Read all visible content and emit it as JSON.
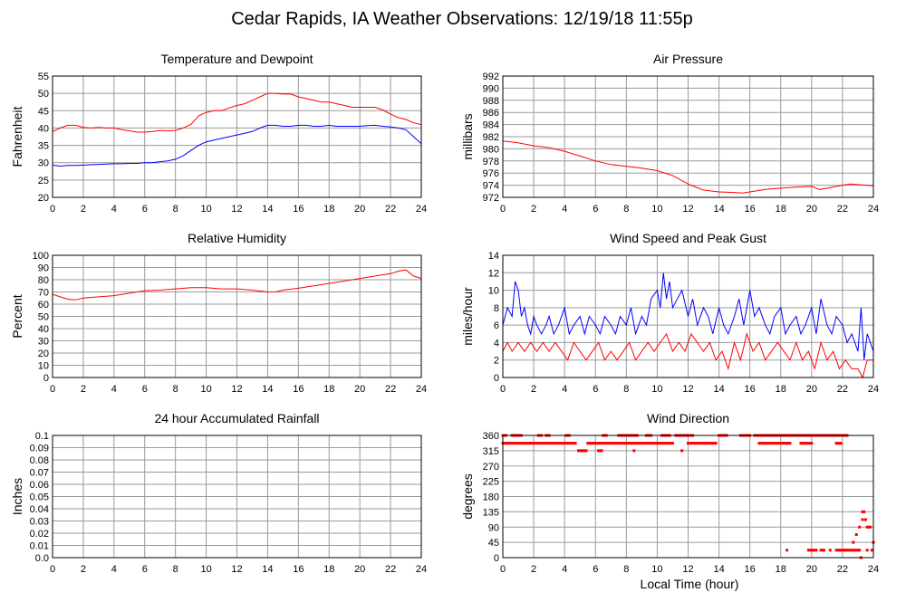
{
  "page": {
    "title": "Cedar Rapids, IA Weather Observations: 12/19/18 11:55p",
    "xlabel_bottom": "Local Time (hour)"
  },
  "colors": {
    "red": "#ff0000",
    "blue": "#0000ff",
    "grid": "#9a9a9a"
  },
  "chart_data": [
    {
      "id": "temp",
      "type": "line",
      "title": "Temperature and Dewpoint",
      "ylabel": "Fahrenheit",
      "xlim": [
        0,
        24
      ],
      "ylim": [
        20,
        55
      ],
      "yticks": [
        20,
        25,
        30,
        35,
        40,
        45,
        50,
        55
      ],
      "xticks": [
        0,
        2,
        4,
        6,
        8,
        10,
        12,
        14,
        16,
        18,
        20,
        22,
        24
      ],
      "grid": true,
      "series": [
        {
          "color": "#ff0000",
          "x": [
            0,
            0.5,
            1,
            1.5,
            2,
            2.5,
            3,
            3.5,
            4,
            4.5,
            5,
            5.5,
            6,
            6.5,
            7,
            7.5,
            8,
            8.5,
            9,
            9.5,
            10,
            10.5,
            11,
            11.5,
            12,
            12.5,
            13,
            13.5,
            14,
            14.5,
            15,
            15.5,
            16,
            16.5,
            17,
            17.5,
            18,
            18.5,
            19,
            19.5,
            20,
            20.5,
            21,
            21.5,
            22,
            22.5,
            23,
            23.5,
            24
          ],
          "y": [
            39,
            40,
            40.8,
            40.8,
            40.2,
            40,
            40.2,
            40,
            40,
            39.5,
            39.2,
            38.8,
            38.8,
            39,
            39.3,
            39.2,
            39.3,
            40,
            41,
            43.5,
            44.5,
            45,
            45,
            45.8,
            46.5,
            47,
            48,
            49,
            50,
            50,
            49.8,
            49.8,
            49,
            48.5,
            48,
            47.5,
            47.5,
            47,
            46.5,
            46,
            46,
            46,
            46,
            45.2,
            44,
            43,
            42.5,
            41.5,
            41
          ]
        },
        {
          "color": "#0000ff",
          "x": [
            0,
            0.5,
            1,
            1.5,
            2,
            2.5,
            3,
            3.5,
            4,
            4.5,
            5,
            5.5,
            6,
            6.5,
            7,
            7.5,
            8,
            8.5,
            9,
            9.5,
            10,
            10.5,
            11,
            11.5,
            12,
            12.5,
            13,
            13.5,
            14,
            14.5,
            15,
            15.5,
            16,
            16.5,
            17,
            17.5,
            18,
            18.5,
            19,
            19.5,
            20,
            20.5,
            21,
            21.5,
            22,
            22.5,
            23,
            23.5,
            24
          ],
          "y": [
            29.3,
            29,
            29.2,
            29.2,
            29.3,
            29.4,
            29.5,
            29.6,
            29.7,
            29.7,
            29.8,
            29.8,
            30,
            30,
            30.3,
            30.5,
            31,
            32,
            33.5,
            35,
            36,
            36.5,
            37,
            37.5,
            38,
            38.5,
            39,
            40,
            40.8,
            40.8,
            40.5,
            40.5,
            40.8,
            40.8,
            40.5,
            40.5,
            40.8,
            40.5,
            40.5,
            40.5,
            40.5,
            40.7,
            40.8,
            40.5,
            40.3,
            40,
            39.5,
            37.5,
            35.5
          ]
        }
      ]
    },
    {
      "id": "pressure",
      "type": "line",
      "title": "Air Pressure",
      "ylabel": "millibars",
      "xlim": [
        0,
        24
      ],
      "ylim": [
        972,
        992
      ],
      "yticks": [
        972,
        974,
        976,
        978,
        980,
        982,
        984,
        986,
        988,
        990,
        992
      ],
      "xticks": [
        0,
        2,
        4,
        6,
        8,
        10,
        12,
        14,
        16,
        18,
        20,
        22,
        24
      ],
      "grid": true,
      "series": [
        {
          "color": "#ff0000",
          "x": [
            0,
            1,
            2,
            3,
            4,
            5,
            6,
            7,
            8,
            9,
            10,
            11,
            12,
            13,
            14,
            15,
            15.5,
            16,
            17,
            18,
            19,
            20,
            20.5,
            21,
            22,
            22.5,
            23,
            24
          ],
          "y": [
            981.3,
            981,
            980.5,
            980.2,
            979.6,
            978.8,
            978,
            977.4,
            977.1,
            976.8,
            976.4,
            975.6,
            974.2,
            973.2,
            972.9,
            972.8,
            972.7,
            972.9,
            973.3,
            973.5,
            973.7,
            973.8,
            973.3,
            973.5,
            974,
            974.2,
            974.1,
            973.9
          ]
        }
      ]
    },
    {
      "id": "humidity",
      "type": "line",
      "title": "Relative Humidity",
      "ylabel": "Percent",
      "xlim": [
        0,
        24
      ],
      "ylim": [
        0,
        100
      ],
      "yticks": [
        0,
        10,
        20,
        30,
        40,
        50,
        60,
        70,
        80,
        90,
        100
      ],
      "xticks": [
        0,
        2,
        4,
        6,
        8,
        10,
        12,
        14,
        16,
        18,
        20,
        22,
        24
      ],
      "grid": true,
      "series": [
        {
          "color": "#ff0000",
          "x": [
            0,
            0.5,
            1,
            1.5,
            2,
            3,
            4,
            5,
            6,
            7,
            8,
            9,
            10,
            11,
            12,
            13,
            14,
            14.5,
            15,
            16,
            17,
            18,
            19,
            20,
            21,
            22,
            22.5,
            23,
            23.5,
            24
          ],
          "y": [
            68,
            66,
            64,
            63.5,
            65,
            66,
            67,
            69,
            71,
            71.5,
            72.5,
            73.5,
            73.5,
            72.5,
            72.5,
            71.5,
            70,
            70,
            71.5,
            73,
            75,
            77,
            79,
            81,
            83,
            85,
            87,
            88,
            83,
            81
          ]
        }
      ]
    },
    {
      "id": "wind",
      "type": "line",
      "title": "Wind Speed and Peak Gust",
      "ylabel": "miles/hour",
      "xlim": [
        0,
        24
      ],
      "ylim": [
        0,
        14
      ],
      "yticks": [
        0,
        2,
        4,
        6,
        8,
        10,
        12,
        14
      ],
      "xticks": [
        0,
        2,
        4,
        6,
        8,
        10,
        12,
        14,
        16,
        18,
        20,
        22,
        24
      ],
      "grid": true,
      "series": [
        {
          "color": "#0000ff",
          "x": [
            0,
            0.3,
            0.6,
            0.8,
            1,
            1.2,
            1.4,
            1.6,
            1.8,
            2,
            2.2,
            2.5,
            2.8,
            3,
            3.3,
            3.6,
            4,
            4.3,
            4.6,
            5,
            5.3,
            5.6,
            6,
            6.3,
            6.6,
            7,
            7.3,
            7.6,
            8,
            8.3,
            8.6,
            9,
            9.3,
            9.6,
            10,
            10.2,
            10.4,
            10.6,
            10.8,
            11,
            11.3,
            11.6,
            12,
            12.3,
            12.6,
            13,
            13.3,
            13.6,
            14,
            14.3,
            14.6,
            15,
            15.3,
            15.6,
            16,
            16.3,
            16.6,
            17,
            17.3,
            17.6,
            18,
            18.3,
            18.6,
            19,
            19.3,
            19.6,
            20,
            20.3,
            20.6,
            21,
            21.3,
            21.6,
            22,
            22.3,
            22.6,
            23,
            23.2,
            23.4,
            23.6,
            23.8,
            24
          ],
          "y": [
            6,
            8,
            7,
            11,
            10,
            7,
            8,
            6,
            5,
            7,
            6,
            5,
            6,
            7,
            5,
            6,
            8,
            5,
            6,
            7,
            5,
            7,
            6,
            5,
            7,
            6,
            5,
            7,
            6,
            8,
            5,
            7,
            6,
            9,
            10,
            8,
            12,
            9,
            11,
            8,
            9,
            10,
            7,
            9,
            6,
            8,
            7,
            5,
            8,
            6,
            5,
            7,
            9,
            6,
            10,
            7,
            8,
            6,
            5,
            7,
            8,
            5,
            6,
            7,
            5,
            6,
            8,
            5,
            9,
            6,
            5,
            7,
            6,
            4,
            5,
            3,
            8,
            2,
            5,
            4,
            3
          ]
        },
        {
          "color": "#ff0000",
          "x": [
            0,
            0.3,
            0.6,
            1,
            1.4,
            1.8,
            2.2,
            2.6,
            3,
            3.4,
            3.8,
            4.2,
            4.6,
            5,
            5.4,
            5.8,
            6.2,
            6.6,
            7,
            7.4,
            7.8,
            8.2,
            8.6,
            9,
            9.4,
            9.8,
            10.2,
            10.6,
            11,
            11.4,
            11.8,
            12.2,
            12.6,
            13,
            13.4,
            13.8,
            14.2,
            14.6,
            15,
            15.4,
            15.8,
            16.2,
            16.6,
            17,
            17.4,
            17.8,
            18.2,
            18.6,
            19,
            19.4,
            19.8,
            20.2,
            20.6,
            21,
            21.4,
            21.8,
            22.2,
            22.6,
            23,
            23.3,
            23.6,
            24
          ],
          "y": [
            3,
            4,
            3,
            4,
            3,
            4,
            3,
            4,
            3,
            4,
            3,
            2,
            4,
            3,
            2,
            3,
            4,
            2,
            3,
            2,
            3,
            4,
            2,
            3,
            4,
            3,
            4,
            5,
            3,
            4,
            3,
            5,
            4,
            3,
            4,
            2,
            3,
            1,
            4,
            2,
            5,
            3,
            4,
            2,
            3,
            4,
            3,
            2,
            4,
            2,
            3,
            1,
            4,
            2,
            3,
            1,
            2,
            1,
            1,
            0,
            2,
            2
          ]
        }
      ]
    },
    {
      "id": "rain",
      "type": "line",
      "title": "24 hour Accumulated Rainfall",
      "ylabel": "Inches",
      "xlim": [
        0,
        24
      ],
      "ylim": [
        0,
        0.1
      ],
      "yticks": [
        0.0,
        0.01,
        0.02,
        0.03,
        0.04,
        0.05,
        0.06,
        0.07,
        0.08,
        0.09,
        0.1
      ],
      "ytick_labels": [
        "0.0",
        "0.01",
        "0.02",
        "0.03",
        "0.04",
        "0.05",
        "0.06",
        "0.07",
        "0.08",
        "0.09",
        "0.1"
      ],
      "xticks": [
        0,
        2,
        4,
        6,
        8,
        10,
        12,
        14,
        16,
        18,
        20,
        22,
        24
      ],
      "grid": true,
      "series": [
        {
          "color": "#ff0000",
          "x": [
            0,
            24
          ],
          "y": [
            0,
            0
          ]
        }
      ]
    },
    {
      "id": "direction",
      "type": "scatter",
      "title": "Wind Direction",
      "ylabel": "degrees",
      "xlim": [
        0,
        24
      ],
      "ylim": [
        0,
        360
      ],
      "yticks": [
        0,
        45,
        90,
        135,
        180,
        225,
        270,
        315,
        360
      ],
      "xticks": [
        0,
        2,
        4,
        6,
        8,
        10,
        12,
        14,
        16,
        18,
        20,
        22,
        24
      ],
      "grid": true,
      "series": [
        {
          "color": "#ff0000",
          "segments": [
            {
              "from": 0.0,
              "to": 4.7,
              "y": 337
            },
            {
              "from": 5.5,
              "to": 11.0,
              "y": 337
            },
            {
              "from": 12.0,
              "to": 13.8,
              "y": 337
            },
            {
              "from": 0.0,
              "to": 0.2,
              "y": 360
            },
            {
              "from": 0.6,
              "to": 1.2,
              "y": 360
            },
            {
              "from": 2.3,
              "to": 2.5,
              "y": 360
            },
            {
              "from": 2.8,
              "to": 3.0,
              "y": 360
            },
            {
              "from": 4.1,
              "to": 4.3,
              "y": 360
            },
            {
              "from": 6.5,
              "to": 6.7,
              "y": 360
            },
            {
              "from": 7.5,
              "to": 8.7,
              "y": 360
            },
            {
              "from": 9.3,
              "to": 9.6,
              "y": 360
            },
            {
              "from": 10.3,
              "to": 10.8,
              "y": 360
            },
            {
              "from": 11.2,
              "to": 12.3,
              "y": 360
            },
            {
              "from": 14.0,
              "to": 14.5,
              "y": 360
            },
            {
              "from": 15.4,
              "to": 16.0,
              "y": 360
            },
            {
              "from": 16.3,
              "to": 22.3,
              "y": 360
            },
            {
              "from": 16.6,
              "to": 18.6,
              "y": 337
            },
            {
              "from": 19.3,
              "to": 20.0,
              "y": 337
            },
            {
              "from": 21.6,
              "to": 21.9,
              "y": 337
            },
            {
              "from": 5.0,
              "to": 5.4,
              "y": 315
            },
            {
              "from": 6.2,
              "to": 6.4,
              "y": 315
            },
            {
              "from": 19.8,
              "to": 20.3,
              "y": 22
            },
            {
              "from": 20.6,
              "to": 20.8,
              "y": 22
            },
            {
              "from": 21.6,
              "to": 23.1,
              "y": 22
            }
          ],
          "points": [
            [
              4.9,
              315
            ],
            [
              8.5,
              315
            ],
            [
              11.6,
              315
            ],
            [
              18.4,
              22
            ],
            [
              21.2,
              22
            ],
            [
              22.7,
              45
            ],
            [
              22.9,
              68
            ],
            [
              23.1,
              90
            ],
            [
              23.3,
              112
            ],
            [
              23.3,
              135
            ],
            [
              23.4,
              135
            ],
            [
              23.5,
              112
            ],
            [
              23.6,
              90
            ],
            [
              23.7,
              90
            ],
            [
              23.8,
              90
            ],
            [
              23.9,
              22
            ],
            [
              24.0,
              45
            ],
            [
              23.2,
              0
            ],
            [
              23.6,
              22
            ]
          ]
        }
      ]
    }
  ]
}
